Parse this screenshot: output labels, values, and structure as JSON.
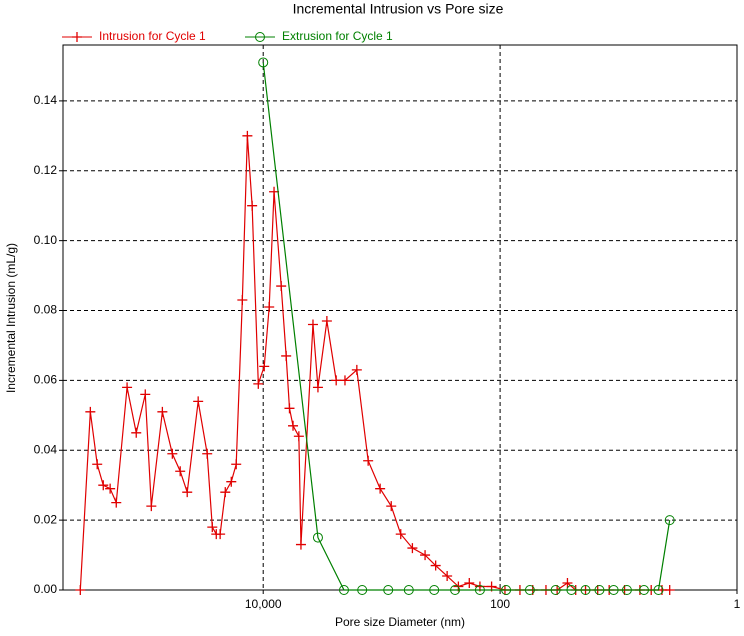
{
  "chart_data": {
    "type": "line",
    "title": "Incremental Intrusion vs Pore size",
    "x_label": "Pore size Diameter (nm)",
    "y_label": "Incremental Intrusion (mL/g)",
    "x_scale": "log",
    "xlim": [
      490000,
      1
    ],
    "ylim": [
      0,
      0.156
    ],
    "xticks": [
      {
        "value": 10000,
        "label": "10,000"
      },
      100,
      1
    ],
    "yticks": [
      {
        "value": 0,
        "label": "0.00"
      },
      {
        "value": 0.02,
        "label": "0.02"
      },
      {
        "value": 0.04,
        "label": "0.04"
      },
      {
        "value": 0.06,
        "label": "0.06"
      },
      {
        "value": 0.08,
        "label": "0.08"
      },
      {
        "value": 0.1,
        "label": "0.10"
      },
      {
        "value": 0.12,
        "label": "0.12"
      },
      {
        "value": 0.14,
        "label": "0.14"
      }
    ],
    "grid": true,
    "legend": "top",
    "series": [
      {
        "name": "Intrusion for Cycle 1",
        "color": "#e00000",
        "marker": "plus",
        "x": [
          350000,
          288000,
          252000,
          224000,
          196000,
          174000,
          141000,
          118000,
          99000,
          88000,
          71000,
          58500,
          50200,
          43800,
          35400,
          29700,
          26900,
          24900,
          23100,
          20900,
          18600,
          16900,
          15000,
          13600,
          12400,
          11000,
          9800,
          8900,
          8100,
          7050,
          6400,
          6000,
          5600,
          5000,
          4800,
          3800,
          3450,
          2900,
          2420,
          2040,
          1620,
          1300,
          1030,
          830,
          690,
          550,
          430,
          350,
          280,
          225,
          182,
          148,
          118,
          91,
          68,
          53,
          41,
          33,
          27,
          23,
          19,
          15,
          12,
          8.9,
          6.6,
          5.3,
          4.3,
          3.7
        ],
        "values": [
          0,
          0.051,
          0.036,
          0.03,
          0.029,
          0.025,
          0.058,
          0.045,
          0.056,
          0.024,
          0.051,
          0.039,
          0.034,
          0.028,
          0.054,
          0.039,
          0.018,
          0.016,
          0.016,
          0.028,
          0.031,
          0.036,
          0.083,
          0.13,
          0.11,
          0.059,
          0.064,
          0.081,
          0.114,
          0.087,
          0.067,
          0.052,
          0.047,
          0.044,
          0.013,
          0.076,
          0.058,
          0.077,
          0.06,
          0.06,
          0.063,
          0.037,
          0.029,
          0.024,
          0.016,
          0.012,
          0.01,
          0.007,
          0.004,
          0.001,
          0.002,
          0.001,
          0.001,
          0,
          0,
          0,
          0,
          0,
          0.002,
          0,
          0,
          0,
          0,
          0,
          0,
          0,
          0,
          0
        ]
      },
      {
        "name": "Extrusion for Cycle 1",
        "color": "#008000",
        "marker": "circle",
        "x": [
          10000,
          3450,
          2080,
          1460,
          880,
          590,
          360,
          240,
          148,
          89,
          56,
          34,
          25,
          19,
          14.5,
          11,
          8.5,
          6.1,
          4.6,
          3.7
        ],
        "values": [
          0.151,
          0.015,
          0,
          0,
          0,
          0,
          0,
          0,
          0,
          0,
          0,
          0,
          0,
          0,
          0,
          0,
          0,
          0,
          0,
          0.02
        ]
      }
    ]
  }
}
